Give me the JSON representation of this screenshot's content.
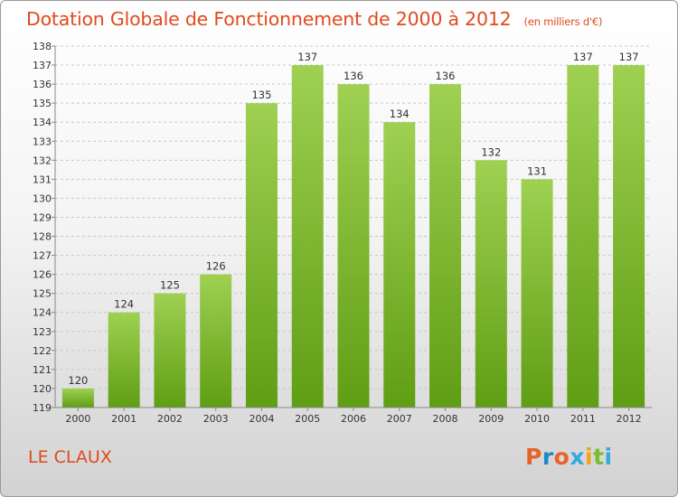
{
  "title": "Dotation Globale de Fonctionnement de 2000 à 2012",
  "unit": "(en milliers d'€)",
  "location": "LE CLAUX",
  "logo": "Proxiti",
  "colors": {
    "title": "#e04a1f",
    "bar_light": "#9fd052",
    "bar_dark": "#5f9e14",
    "logo_letters": [
      "#e8622a",
      "#1e88c8",
      "#e8622a",
      "#35a9de",
      "#f2a21b",
      "#7bbd2b",
      "#35a9de"
    ]
  },
  "chart_data": {
    "type": "bar",
    "title": "Dotation Globale de Fonctionnement de 2000 à 2012",
    "subtitle": "(en milliers d'€)",
    "xlabel": "",
    "ylabel": "",
    "ylim": [
      119,
      138
    ],
    "yticks": [
      119,
      120,
      121,
      122,
      123,
      124,
      125,
      126,
      127,
      128,
      129,
      130,
      131,
      132,
      133,
      134,
      135,
      136,
      137,
      138
    ],
    "grid": true,
    "categories": [
      "2000",
      "2001",
      "2002",
      "2003",
      "2004",
      "2005",
      "2006",
      "2007",
      "2008",
      "2009",
      "2010",
      "2011",
      "2012"
    ],
    "values": [
      120,
      124,
      125,
      126,
      135,
      137,
      136,
      134,
      136,
      132,
      131,
      137,
      137
    ]
  }
}
